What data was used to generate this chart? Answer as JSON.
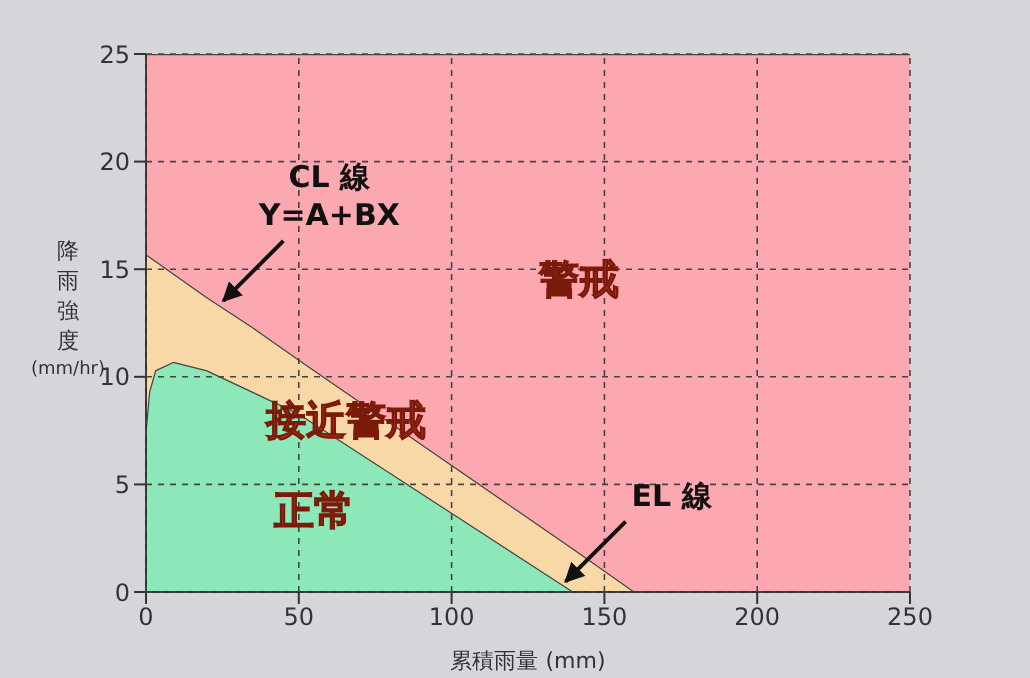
{
  "chart_data": {
    "type": "area",
    "stacked": true,
    "xlabel": "累積雨量 (mm)",
    "ylabel": "降雨強度 (mm/hr)",
    "xlim": [
      0,
      250
    ],
    "xticks": [
      0,
      50,
      100,
      150,
      200,
      250
    ],
    "ylim": [
      0,
      25
    ],
    "yticks": [
      0,
      5,
      10,
      15,
      20,
      25
    ],
    "grid": true,
    "legend": false,
    "x": [
      0,
      1,
      3,
      9,
      20,
      35,
      50,
      140,
      160,
      250
    ],
    "series": [
      {
        "name": "正常",
        "color": "#8ce8b8",
        "values": [
          7.7,
          9.3,
          10.3,
          10.7,
          10.3,
          9.3,
          8.3,
          0,
          0,
          0
        ]
      },
      {
        "name": "接近警戒",
        "color": "#f9d8a8",
        "values": [
          8.0,
          6.3,
          5.1,
          4.1,
          3.4,
          3.0,
          2.5,
          2.0,
          0,
          0
        ]
      },
      {
        "name": "警戒",
        "color": "#fba8b0",
        "values": [
          9.3,
          9.4,
          9.6,
          10.2,
          11.3,
          12.7,
          14.2,
          23.0,
          25,
          25
        ]
      }
    ],
    "annotations": [
      {
        "text": "CL 線\nY=A+BX",
        "x": 24,
        "y": 13.34
      },
      {
        "text": "EL 線",
        "x": 136,
        "y": 0.3
      }
    ]
  }
}
